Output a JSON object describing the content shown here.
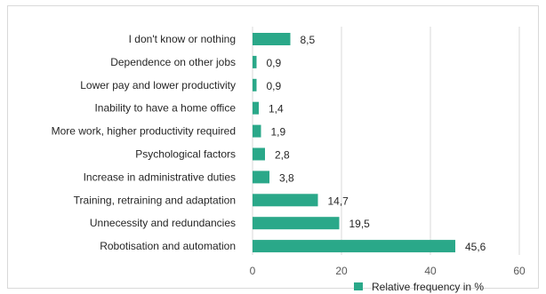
{
  "chart_data": {
    "type": "bar",
    "orientation": "horizontal",
    "categories": [
      "I don't know or nothing",
      "Dependence on other jobs",
      "Lower pay and lower productivity",
      "Inability to have a home office",
      "More work, higher productivity required",
      "Psychological factors",
      "Increase in administrative duties",
      "Training, retraining and adaptation",
      "Unnecessity and redundancies",
      "Robotisation and automation"
    ],
    "values": [
      8.5,
      0.9,
      0.9,
      1.4,
      1.9,
      2.8,
      3.8,
      14.7,
      19.5,
      45.6
    ],
    "value_labels": [
      "8,5",
      "0,9",
      "0,9",
      "1,4",
      "1,9",
      "2,8",
      "3,8",
      "14,7",
      "19,5",
      "45,6"
    ],
    "series": [
      {
        "name": "Relative frequency in %",
        "values": [
          8.5,
          0.9,
          0.9,
          1.4,
          1.9,
          2.8,
          3.8,
          14.7,
          19.5,
          45.6
        ]
      }
    ],
    "xlim": [
      0,
      60
    ],
    "xticks": [
      0,
      20,
      40,
      60
    ],
    "xtick_labels": [
      "0",
      "20",
      "40",
      "60"
    ],
    "grid": "vertical",
    "legend": "bottom-right",
    "bar_color": "#2aa889",
    "grid_color": "#d9d9d9"
  }
}
